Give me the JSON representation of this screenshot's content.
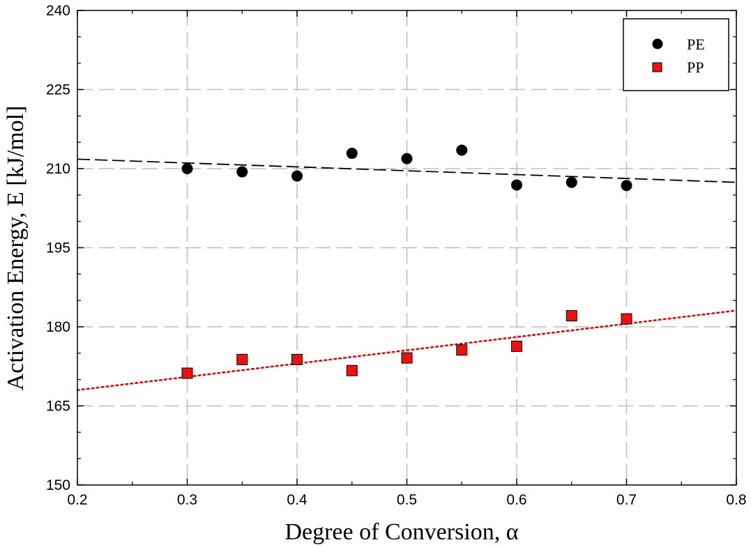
{
  "chart_data": {
    "type": "scatter",
    "title": "",
    "xlabel": "Degree of Conversion, α",
    "ylabel": "Activation Energy, E [kJ/mol]",
    "xlim": [
      0.2,
      0.8
    ],
    "ylim": [
      150,
      240
    ],
    "xticks": [
      "0.2",
      "0.3",
      "0.4",
      "0.5",
      "0.6",
      "0.7",
      "0.8"
    ],
    "yticks": [
      "150",
      "165",
      "180",
      "195",
      "210",
      "225",
      "240"
    ],
    "grid": true,
    "legend_position": "top-right",
    "series": [
      {
        "name": "PE",
        "marker": "circle",
        "color": "#000000",
        "x": [
          0.3,
          0.35,
          0.4,
          0.45,
          0.5,
          0.55,
          0.6,
          0.65,
          0.7
        ],
        "y": [
          210.0,
          209.4,
          208.6,
          212.9,
          211.9,
          213.5,
          206.9,
          207.4,
          206.8
        ]
      },
      {
        "name": "PP",
        "marker": "square",
        "color": "#ee1111",
        "x": [
          0.3,
          0.35,
          0.4,
          0.45,
          0.5,
          0.55,
          0.6,
          0.65,
          0.7
        ],
        "y": [
          171.2,
          173.8,
          173.8,
          171.7,
          174.1,
          175.6,
          176.3,
          182.1,
          181.5
        ]
      }
    ],
    "trendlines": [
      {
        "series": "PE",
        "style": "dashed",
        "color": "#000000",
        "x": [
          0.2,
          0.8
        ],
        "y": [
          211.8,
          207.4
        ]
      },
      {
        "series": "PP",
        "style": "dotted",
        "color": "#dd0000",
        "x": [
          0.2,
          0.8
        ],
        "y": [
          168.0,
          183.1
        ]
      }
    ]
  }
}
